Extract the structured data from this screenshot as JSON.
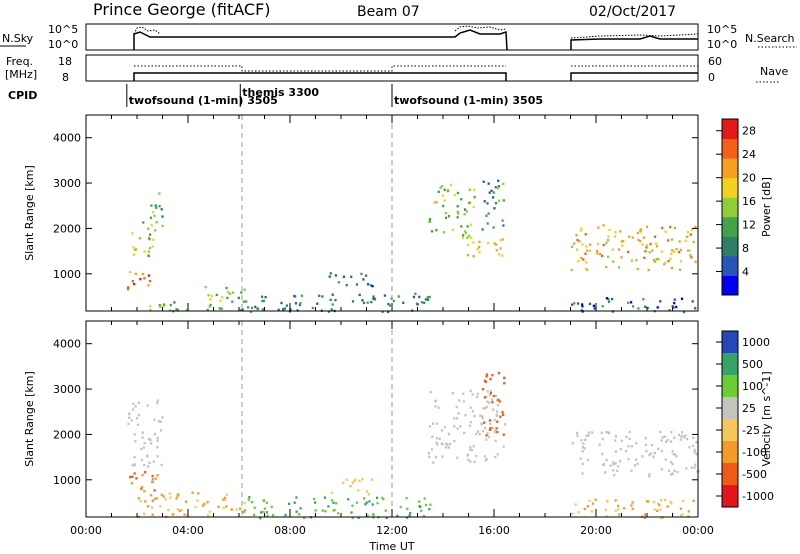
{
  "header": {
    "station": "Prince George (fitACF)",
    "beam": "Beam 07",
    "date": "02/Oct/2017"
  },
  "top_panels": {
    "nsky_label": "N.Sky",
    "nsky_ticks": [
      "10^5",
      "10^0"
    ],
    "nsearch_label": "N.Search",
    "nsearch_ticks": [
      "10^5",
      "10^0"
    ],
    "freq_label_1": "Freq.",
    "freq_label_2": "[MHz]",
    "freq_ticks": [
      "18",
      "8"
    ],
    "nave_label": "Nave",
    "nave_ticks": [
      "60",
      "0"
    ],
    "cpid_label": "CPID",
    "cpid_segments": [
      {
        "start_h": 1.6,
        "text": "twofsound (1-min) 3505"
      },
      {
        "start_h": 6.05,
        "text": "themis 3300"
      },
      {
        "start_h": 12.0,
        "text": "twofsound (1-min) 3505"
      }
    ]
  },
  "chart_data": [
    {
      "type": "heatmap",
      "title": "",
      "xlabel": "",
      "ylabel": "Slant Range [km]",
      "xlim": [
        0,
        24
      ],
      "ylim": [
        180,
        4500
      ],
      "x_tick_values": [
        0,
        4,
        8,
        12,
        16,
        20,
        24
      ],
      "y_tick_values": [
        1000,
        2000,
        3000,
        4000
      ],
      "y_ticks": [
        "1000",
        "2000",
        "3000",
        "4000"
      ],
      "colorbar": {
        "label": "Power [dB]",
        "ticks": [
          "28",
          "24",
          "20",
          "16",
          "12",
          "8",
          "4"
        ],
        "tick_values": [
          28,
          24,
          20,
          16,
          12,
          8,
          4
        ],
        "range": [
          0,
          30
        ],
        "colors": [
          "#0000ee",
          "#2a55b8",
          "#2e7e68",
          "#44a34a",
          "#8fcd3b",
          "#f1d31f",
          "#f5a022",
          "#f26019",
          "#e41a1a"
        ]
      },
      "echo_regions": [
        {
          "t0": 1.6,
          "t1": 2.6,
          "r0": 1300,
          "r1": 2000,
          "value": 16
        },
        {
          "t0": 2.2,
          "t1": 3.0,
          "r0": 1900,
          "r1": 2800,
          "value": 14
        },
        {
          "t0": 1.6,
          "t1": 2.6,
          "r0": 550,
          "r1": 1100,
          "value": 24
        },
        {
          "t0": 2.0,
          "t1": 6.0,
          "r0": 200,
          "r1": 400,
          "value": 12
        },
        {
          "t0": 4.0,
          "t1": 6.2,
          "r0": 400,
          "r1": 750,
          "value": 14
        },
        {
          "t0": 6.0,
          "t1": 13.5,
          "r0": 180,
          "r1": 600,
          "value": 8
        },
        {
          "t0": 9.5,
          "t1": 11.3,
          "r0": 700,
          "r1": 1050,
          "value": 8
        },
        {
          "t0": 13.4,
          "t1": 15.2,
          "r0": 1800,
          "r1": 3000,
          "value": 14
        },
        {
          "t0": 14.8,
          "t1": 16.4,
          "r0": 1400,
          "r1": 1900,
          "value": 18
        },
        {
          "t0": 15.5,
          "t1": 16.4,
          "r0": 2000,
          "r1": 3200,
          "value": 10
        },
        {
          "t0": 19.0,
          "t1": 24.0,
          "r0": 1100,
          "r1": 2100,
          "value": 20
        },
        {
          "t0": 19.0,
          "t1": 24.0,
          "r0": 180,
          "r1": 500,
          "value": 6
        }
      ]
    },
    {
      "type": "heatmap",
      "title": "",
      "xlabel": "Time UT",
      "ylabel": "Slant Range [km]",
      "xlim": [
        0,
        24
      ],
      "ylim": [
        180,
        4500
      ],
      "x_ticks": [
        "00:00",
        "04:00",
        "08:00",
        "12:00",
        "16:00",
        "20:00",
        "00:00"
      ],
      "x_tick_values": [
        0,
        4,
        8,
        12,
        16,
        20,
        24
      ],
      "y_tick_values": [
        1000,
        2000,
        3000,
        4000
      ],
      "y_ticks": [
        "1000",
        "2000",
        "3000",
        "4000"
      ],
      "colorbar": {
        "label": "Velocity [m s^-1]",
        "ticks": [
          "1000",
          "500",
          "100",
          "25",
          "-25",
          "-100",
          "-500",
          "-1000"
        ],
        "colors": [
          "#2547b8",
          "#36a368",
          "#6dcb34",
          "#c4c4bc",
          "#f7c75c",
          "#f59a2a",
          "#f05a17",
          "#e3161b"
        ]
      },
      "echo_regions": [
        {
          "t0": 1.6,
          "t1": 3.0,
          "r0": 1300,
          "r1": 2800,
          "value": 0
        },
        {
          "t0": 1.6,
          "t1": 3.0,
          "r0": 550,
          "r1": 1200,
          "value": -500
        },
        {
          "t0": 2.0,
          "t1": 6.2,
          "r0": 200,
          "r1": 750,
          "value": -100
        },
        {
          "t0": 6.0,
          "t1": 13.5,
          "r0": 180,
          "r1": 650,
          "value": 100
        },
        {
          "t0": 9.5,
          "t1": 11.3,
          "r0": 700,
          "r1": 1050,
          "value": -50
        },
        {
          "t0": 13.4,
          "t1": 16.4,
          "r0": 1400,
          "r1": 3000,
          "value": 0
        },
        {
          "t0": 15.5,
          "t1": 16.4,
          "r0": 2000,
          "r1": 3400,
          "value": -800
        },
        {
          "t0": 19.0,
          "t1": 24.0,
          "r0": 1100,
          "r1": 2100,
          "value": 0
        },
        {
          "t0": 19.0,
          "t1": 24.0,
          "r0": 180,
          "r1": 600,
          "value": -100
        }
      ]
    }
  ]
}
